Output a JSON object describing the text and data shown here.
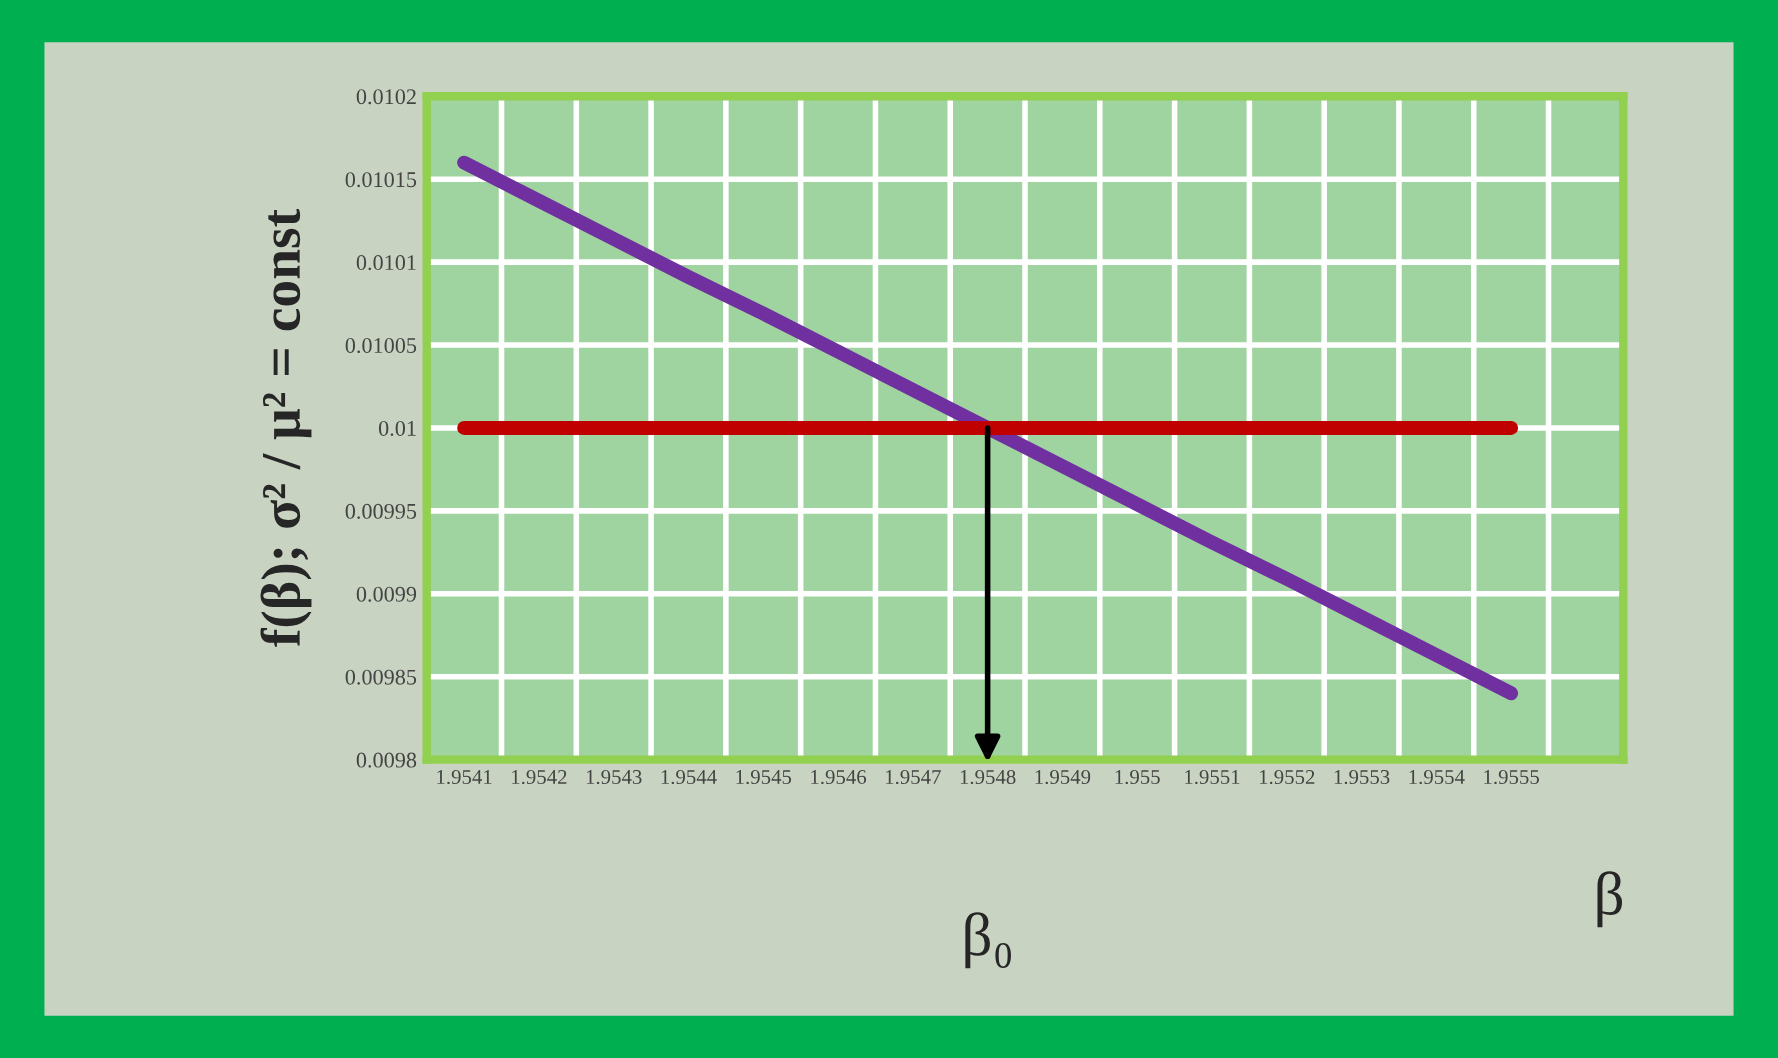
{
  "chart_data": {
    "type": "line",
    "ylabel": "f(β); σ² / μ² = const",
    "xlabel": "β",
    "categories": [
      "1.9541",
      "1.9542",
      "1.9543",
      "1.9544",
      "1.9545",
      "1.9546",
      "1.9547",
      "1.9548",
      "1.9549",
      "1.955",
      "1.9551",
      "1.9552",
      "1.9553",
      "1.9554",
      "1.9555",
      null
    ],
    "series": [
      {
        "color": "#7030a0",
        "values": [
          0.01016,
          0.010137,
          0.010114,
          0.010091,
          0.010069,
          0.010046,
          0.010023,
          0.01,
          0.009977,
          0.009954,
          0.009931,
          0.009909,
          0.009886,
          0.009863,
          0.00984,
          null
        ]
      },
      {
        "color": "#c00000",
        "values": [
          0.01,
          0.01,
          0.01,
          0.01,
          0.01,
          0.01,
          0.01,
          0.01,
          0.01,
          0.01,
          0.01,
          0.01,
          0.01,
          0.01,
          0.01,
          null
        ]
      }
    ],
    "ylim": [
      0.0098,
      0.0102
    ],
    "yticks": [
      0.0098,
      0.00985,
      0.0099,
      0.00995,
      0.01,
      0.01005,
      0.0101,
      0.01015,
      0.0102
    ],
    "annotations": [
      "β₀"
    ],
    "grid": true,
    "legend": false,
    "marker": "none",
    "line_style": "solid"
  }
}
